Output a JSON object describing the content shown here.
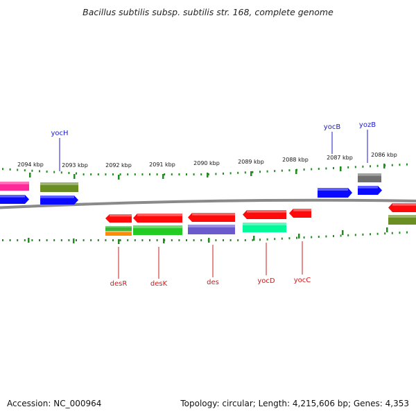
{
  "title": "Bacillus subtilis subsp. subtilis str. 168, complete genome",
  "footer": {
    "accession": "Accession: NC_000964",
    "info": "Topology: circular; Length: 4,215,606 bp; Genes: 4,353"
  },
  "colors": {
    "backbone": "#8a8a8a",
    "tick": "#228b22",
    "label_plus": "#1a1acc",
    "label_minus": "#cc1a1a"
  },
  "kbp_labels": [
    "2094 kbp",
    "2093 kbp",
    "2092 kbp",
    "2091 kbp",
    "2090 kbp",
    "2089 kbp",
    "2088 kbp",
    "2087 kbp",
    "2086 kbp"
  ],
  "gene_labels_top": [
    "yocH",
    "yocB",
    "yozB"
  ],
  "gene_labels_bottom": [
    "desR",
    "desK",
    "des",
    "yocD",
    "yocC"
  ],
  "features": [
    {
      "name": "feature-pink",
      "color": "#ff2a9a"
    },
    {
      "name": "feature-blue-left",
      "color": "#0a0aff"
    },
    {
      "name": "feature-olive-left",
      "color": "#6b8e23"
    },
    {
      "name": "feature-yocH",
      "color": "#0a0aff"
    },
    {
      "name": "feature-yocB",
      "color": "#0a0aff"
    },
    {
      "name": "feature-gray",
      "color": "#707070"
    },
    {
      "name": "feature-yozB",
      "color": "#0a0aff"
    },
    {
      "name": "feature-desR-red",
      "color": "#ff0a0a"
    },
    {
      "name": "feature-desR-green",
      "color": "#3cb43c"
    },
    {
      "name": "feature-desR-orange",
      "color": "#ff8c00"
    },
    {
      "name": "feature-desK-red",
      "color": "#ff0a0a"
    },
    {
      "name": "feature-desK-green",
      "color": "#22cc22"
    },
    {
      "name": "feature-des-red",
      "color": "#ff0a0a"
    },
    {
      "name": "feature-des-purple",
      "color": "#6a5acd"
    },
    {
      "name": "feature-yocD-red",
      "color": "#ff0a0a"
    },
    {
      "name": "feature-yocD-teal",
      "color": "#00fa9a"
    },
    {
      "name": "feature-yocC-red",
      "color": "#ff0a0a"
    },
    {
      "name": "feature-red-right",
      "color": "#ff0a0a"
    },
    {
      "name": "feature-olive-right",
      "color": "#6b8e23"
    }
  ]
}
